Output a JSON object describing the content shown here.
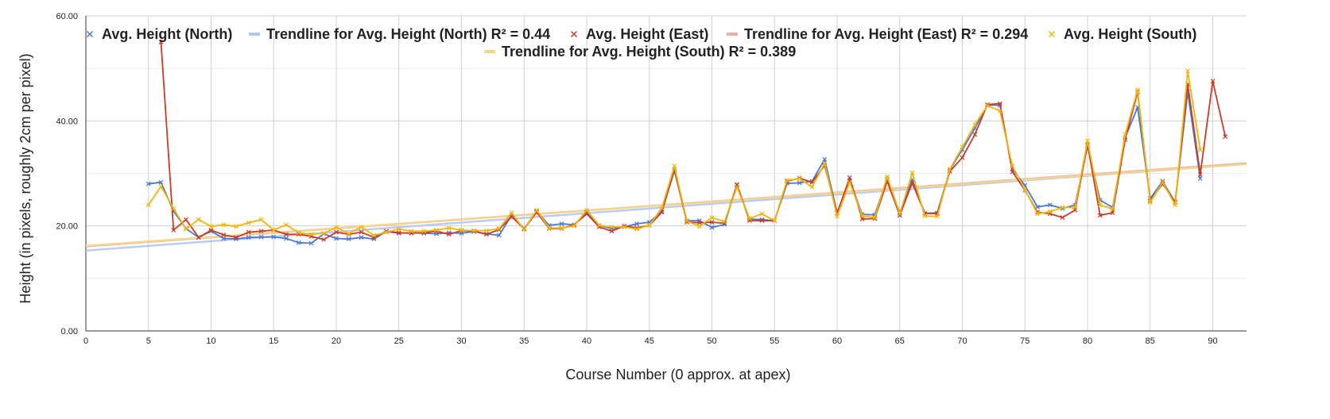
{
  "chart_data": {
    "type": "line",
    "xlabel": "Course Number (0 approx. at apex)",
    "ylabel": "Height (in pixels, roughly 2cm per pixel)",
    "xlim": [
      0,
      93
    ],
    "ylim": [
      0,
      60
    ],
    "x_ticks": [
      "0",
      "5",
      "10",
      "15",
      "20",
      "25",
      "30",
      "35",
      "40",
      "45",
      "50",
      "55",
      "60",
      "65",
      "70",
      "75",
      "80",
      "85",
      "90"
    ],
    "y_ticks": [
      "0.00",
      "20.00",
      "40.00",
      "60.00"
    ],
    "grid": true,
    "legend_position": "top",
    "legend": [
      {
        "label": "Avg. Height (North)",
        "kind": "marker",
        "color": "#4a78d8"
      },
      {
        "label": "Trendline for Avg. Height (North) R² = 0.44",
        "kind": "trend",
        "color": "#b4c6f0"
      },
      {
        "label": "Avg. Height (East)",
        "kind": "marker",
        "color": "#cc3b2a"
      },
      {
        "label": "Trendline for Avg. Height (East) R² = 0.294",
        "kind": "trend",
        "color": "#e7b0a6"
      },
      {
        "label": "Avg. Height (South)",
        "kind": "marker",
        "color": "#f2b705"
      },
      {
        "label": "Trendline for Avg. Height (South) R² = 0.389",
        "kind": "trend",
        "color": "#f5d78a"
      }
    ],
    "series": [
      {
        "name": "Avg. Height (North)",
        "color": "#4a78d8",
        "x": [
          5,
          6,
          7,
          8,
          9,
          10,
          11,
          12,
          13,
          14,
          15,
          16,
          17,
          18,
          19,
          20,
          21,
          22,
          23,
          24,
          25,
          26,
          27,
          28,
          29,
          30,
          31,
          32,
          33,
          34,
          35,
          36,
          37,
          38,
          39,
          40,
          41,
          42,
          43,
          44,
          45,
          46,
          47,
          48,
          49,
          50,
          51,
          52,
          53,
          54,
          55,
          56,
          57,
          58,
          59,
          60,
          61,
          62,
          63,
          64,
          65,
          66,
          67,
          68,
          69,
          70,
          71,
          72,
          73,
          74,
          75,
          76,
          77,
          78,
          79,
          80,
          81,
          82,
          83,
          84,
          85,
          86,
          87,
          88,
          89
        ],
        "values": [
          28,
          28.3,
          22.8,
          19.5,
          17.8,
          19,
          17.6,
          17.5,
          17.8,
          17.9,
          17.9,
          17.6,
          16.8,
          16.7,
          18.5,
          17.6,
          17.5,
          17.8,
          17.5,
          18.9,
          18.6,
          18.7,
          18.6,
          18.5,
          18.7,
          18.6,
          18.9,
          18.5,
          18.2,
          22,
          19.5,
          22.8,
          20.1,
          20.4,
          20.2,
          22.6,
          20.1,
          19.5,
          19.8,
          20.4,
          20.7,
          22.8,
          30.5,
          21,
          21,
          19.7,
          20.3,
          27.8,
          21.3,
          21.2,
          21,
          28.1,
          28.2,
          28.5,
          32.7,
          22.5,
          28.6,
          22.2,
          22.1,
          29,
          22.5,
          28.8,
          22.4,
          22.5,
          30.7,
          34.5,
          38.6,
          43,
          43,
          30.8,
          27.7,
          23.6,
          24,
          23.3,
          24,
          35.3,
          24.9,
          23.5,
          36.8,
          42.6,
          25.2,
          28.5,
          24.5,
          45.5,
          29
        ]
      },
      {
        "name": "Avg. Height (East)",
        "color": "#cc3b2a",
        "x": [
          6,
          7,
          8,
          9,
          10,
          11,
          12,
          13,
          14,
          15,
          16,
          17,
          18,
          19,
          20,
          21,
          22,
          23,
          24,
          25,
          26,
          27,
          28,
          29,
          30,
          31,
          32,
          33,
          34,
          35,
          36,
          37,
          38,
          39,
          40,
          41,
          42,
          43,
          44,
          45,
          46,
          47,
          48,
          49,
          50,
          51,
          52,
          53,
          54,
          55,
          56,
          57,
          58,
          59,
          60,
          61,
          62,
          63,
          64,
          65,
          66,
          67,
          68,
          69,
          70,
          71,
          72,
          73,
          74,
          75,
          76,
          77,
          78,
          79,
          80,
          81,
          82,
          83,
          84,
          85,
          86,
          87,
          88,
          89,
          90,
          91
        ],
        "values": [
          55,
          19.2,
          21.2,
          17.8,
          19.2,
          18.3,
          17.8,
          18.8,
          19,
          19.2,
          18.4,
          18.4,
          18,
          17.4,
          18.8,
          18.4,
          18.8,
          17.8,
          19,
          18.7,
          18.6,
          18.7,
          19,
          18.4,
          19.1,
          19,
          18.4,
          19.3,
          21.8,
          19.4,
          22.6,
          19.5,
          19.5,
          20.2,
          22.3,
          19.8,
          19,
          20,
          19.6,
          20.1,
          22.6,
          30.8,
          20.7,
          20.6,
          20.7,
          20.5,
          27.9,
          21,
          21,
          21,
          28.5,
          29.1,
          28.3,
          31.5,
          22.4,
          29.2,
          21.3,
          21.4,
          28.5,
          22,
          28.2,
          22.4,
          22.3,
          30.4,
          33,
          37.4,
          43.1,
          43.3,
          30.3,
          26.8,
          22.6,
          22.3,
          21.6,
          23,
          35.5,
          22,
          22.5,
          36.4,
          45.5,
          24.8,
          28,
          24.5,
          47,
          29.8,
          47.6,
          37
        ]
      },
      {
        "name": "Avg. Height (South)",
        "color": "#f2b705",
        "x": [
          5,
          6,
          7,
          8,
          9,
          10,
          11,
          12,
          13,
          14,
          15,
          16,
          17,
          18,
          19,
          20,
          21,
          22,
          23,
          24,
          25,
          26,
          27,
          28,
          29,
          30,
          31,
          32,
          33,
          34,
          35,
          36,
          37,
          38,
          39,
          40,
          41,
          42,
          43,
          44,
          45,
          46,
          47,
          48,
          49,
          50,
          51,
          52,
          53,
          54,
          55,
          56,
          57,
          58,
          59,
          60,
          61,
          62,
          63,
          64,
          65,
          66,
          67,
          68,
          69,
          70,
          71,
          72,
          73,
          74,
          75,
          76,
          77,
          78,
          79,
          80,
          81,
          82,
          83,
          84,
          85,
          86,
          87,
          88,
          89
        ],
        "values": [
          24,
          27.5,
          23.3,
          19.4,
          21.2,
          19.9,
          20.2,
          19.9,
          20.6,
          21.2,
          19.2,
          20.2,
          18.7,
          18.4,
          18.6,
          19.7,
          18.5,
          19.8,
          18.2,
          18.8,
          19.4,
          19,
          19,
          19.2,
          19.6,
          19.2,
          19.1,
          19.1,
          19.5,
          22.5,
          19.3,
          23,
          19.6,
          19.6,
          20,
          23,
          20.1,
          19.8,
          19.8,
          19.4,
          20.1,
          23.4,
          31.4,
          20.9,
          19.9,
          21.6,
          20.8,
          27.4,
          21.4,
          22.3,
          21,
          28.7,
          29,
          27.4,
          31.9,
          21.8,
          28.3,
          21.9,
          21.6,
          29.4,
          22.3,
          30.1,
          21.9,
          21.8,
          30.8,
          35,
          39.3,
          42.9,
          41.9,
          31.4,
          26.9,
          22.3,
          22.7,
          23.5,
          23.5,
          36.2,
          24,
          23.2,
          37.4,
          45.9,
          24.5,
          28.3,
          24,
          49.5,
          34.5
        ]
      }
    ],
    "trendlines": [
      {
        "name": "Trendline for Avg. Height (North)",
        "color": "#b4c6f0",
        "slope": 0.178,
        "intercept": 15.3,
        "r2": 0.44
      },
      {
        "name": "Trendline for Avg. Height (East)",
        "color": "#e7b0a6",
        "slope": 0.171,
        "intercept": 16.1,
        "r2": 0.294
      },
      {
        "name": "Trendline for Avg. Height (South)",
        "color": "#f5d78a",
        "slope": 0.168,
        "intercept": 16.2,
        "r2": 0.389
      }
    ]
  }
}
